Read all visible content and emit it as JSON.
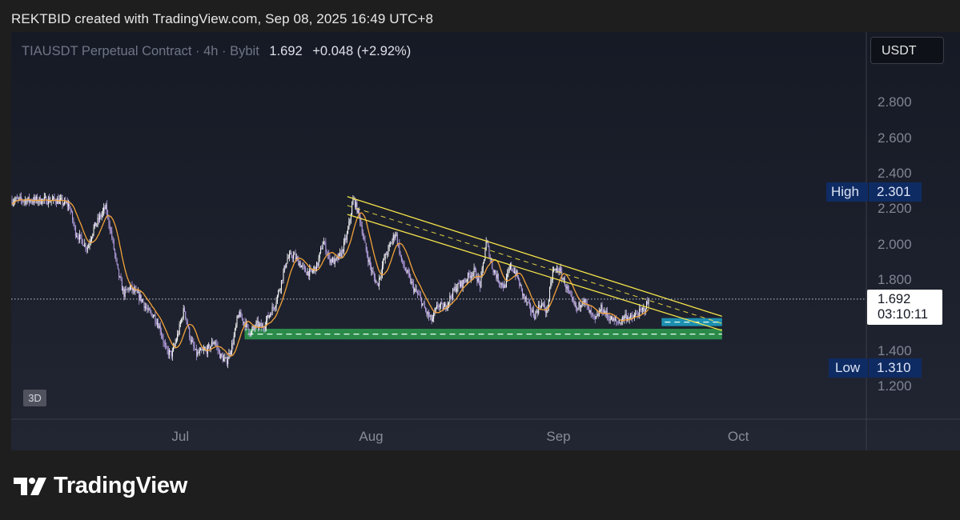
{
  "header": {
    "attribution": "REKTBID created with TradingView.com, Sep 08, 2025 16:49 UTC+8"
  },
  "legend": {
    "symbol": "TIAUSDT Perpetual Contract · 4h · Bybit",
    "last": "1.692",
    "change": "+0.048 (+2.92%)"
  },
  "unit_button": "USDT",
  "badge_3d": "3D",
  "brand": "TradingView",
  "colors": {
    "candle_up": "#ffffff",
    "candle_down": "#b9a3e6",
    "moving_average": "#f2a23a",
    "trendline": "#f5e34a",
    "support_zone": "#2e9c4e",
    "target_zone": "#1ca2c8",
    "tag_bg": "#0f2b63"
  },
  "chart_data": {
    "type": "candlestick",
    "symbol": "TIAUSDT",
    "timeframe": "4h",
    "exchange": "Bybit",
    "y_axis": {
      "ticks": [
        "1.200",
        "1.400",
        "1.800",
        "2.000",
        "2.200",
        "2.400",
        "2.600",
        "2.800"
      ],
      "range": [
        1.12,
        2.95
      ]
    },
    "x_axis": {
      "ticks": [
        "Jul",
        "Aug",
        "Sep",
        "Oct"
      ]
    },
    "high": {
      "label": "High",
      "value": "2.301"
    },
    "low": {
      "label": "Low",
      "value": "1.310"
    },
    "last_price": {
      "value": "1.692",
      "countdown": "03:10:11"
    },
    "close_path": [
      [
        "2025-06-10",
        2.25
      ],
      [
        "2025-06-12",
        2.22
      ],
      [
        "2025-06-13",
        2.07
      ],
      [
        "2025-06-15",
        1.98
      ],
      [
        "2025-06-16",
        2.09
      ],
      [
        "2025-06-18",
        2.21
      ],
      [
        "2025-06-19",
        2.05
      ],
      [
        "2025-06-20",
        1.85
      ],
      [
        "2025-06-21",
        1.72
      ],
      [
        "2025-06-22",
        1.76
      ],
      [
        "2025-06-24",
        1.69
      ],
      [
        "2025-06-25",
        1.62
      ],
      [
        "2025-06-26",
        1.6
      ],
      [
        "2025-06-27",
        1.53
      ],
      [
        "2025-06-28",
        1.4
      ],
      [
        "2025-06-29",
        1.38
      ],
      [
        "2025-06-30",
        1.5
      ],
      [
        "2025-07-01",
        1.64
      ],
      [
        "2025-07-02",
        1.47
      ],
      [
        "2025-07-03",
        1.38
      ],
      [
        "2025-07-05",
        1.41
      ],
      [
        "2025-07-06",
        1.46
      ],
      [
        "2025-07-07",
        1.37
      ],
      [
        "2025-07-08",
        1.34
      ],
      [
        "2025-07-09",
        1.44
      ],
      [
        "2025-07-10",
        1.61
      ],
      [
        "2025-07-11",
        1.56
      ],
      [
        "2025-07-12",
        1.5
      ],
      [
        "2025-07-13",
        1.55
      ],
      [
        "2025-07-14",
        1.53
      ],
      [
        "2025-07-15",
        1.6
      ],
      [
        "2025-07-16",
        1.66
      ],
      [
        "2025-07-17",
        1.78
      ],
      [
        "2025-07-18",
        1.92
      ],
      [
        "2025-07-19",
        1.94
      ],
      [
        "2025-07-20",
        1.9
      ],
      [
        "2025-07-21",
        1.85
      ],
      [
        "2025-07-22",
        1.84
      ],
      [
        "2025-07-23",
        1.88
      ],
      [
        "2025-07-24",
        2.02
      ],
      [
        "2025-07-25",
        1.92
      ],
      [
        "2025-07-26",
        1.9
      ],
      [
        "2025-07-27",
        1.95
      ],
      [
        "2025-07-28",
        2.06
      ],
      [
        "2025-07-29",
        2.26
      ],
      [
        "2025-07-30",
        2.16
      ],
      [
        "2025-07-31",
        1.98
      ],
      [
        "2025-08-01",
        1.85
      ],
      [
        "2025-08-02",
        1.77
      ],
      [
        "2025-08-03",
        1.91
      ],
      [
        "2025-08-04",
        1.99
      ],
      [
        "2025-08-05",
        2.07
      ],
      [
        "2025-08-06",
        1.9
      ],
      [
        "2025-08-07",
        1.83
      ],
      [
        "2025-08-08",
        1.75
      ],
      [
        "2025-08-09",
        1.7
      ],
      [
        "2025-08-10",
        1.62
      ],
      [
        "2025-08-11",
        1.57
      ],
      [
        "2025-08-12",
        1.66
      ],
      [
        "2025-08-13",
        1.64
      ],
      [
        "2025-08-14",
        1.7
      ],
      [
        "2025-08-15",
        1.76
      ],
      [
        "2025-08-16",
        1.78
      ],
      [
        "2025-08-17",
        1.82
      ],
      [
        "2025-08-18",
        1.85
      ],
      [
        "2025-08-19",
        1.77
      ],
      [
        "2025-08-20",
        2.02
      ],
      [
        "2025-08-21",
        1.87
      ],
      [
        "2025-08-22",
        1.8
      ],
      [
        "2025-08-23",
        1.76
      ],
      [
        "2025-08-24",
        1.88
      ],
      [
        "2025-08-25",
        1.83
      ],
      [
        "2025-08-26",
        1.72
      ],
      [
        "2025-08-27",
        1.65
      ],
      [
        "2025-08-28",
        1.6
      ],
      [
        "2025-08-29",
        1.67
      ],
      [
        "2025-08-30",
        1.62
      ],
      [
        "2025-08-31",
        1.85
      ],
      [
        "2025-09-01",
        1.86
      ],
      [
        "2025-09-02",
        1.78
      ],
      [
        "2025-09-03",
        1.69
      ],
      [
        "2025-09-04",
        1.63
      ],
      [
        "2025-09-05",
        1.7
      ],
      [
        "2025-09-06",
        1.62
      ],
      [
        "2025-09-07",
        1.57
      ],
      [
        "2025-09-08",
        1.64
      ],
      [
        "2025-09-09",
        1.6
      ],
      [
        "2025-09-10",
        1.57
      ],
      [
        "2025-09-11",
        1.56
      ],
      [
        "2025-09-12",
        1.6
      ],
      [
        "2025-09-13",
        1.58
      ],
      [
        "2025-09-14",
        1.61
      ],
      [
        "2025-09-15",
        1.63
      ],
      [
        "2025-09-16",
        1.69
      ]
    ],
    "trendline_channel": {
      "upper": [
        [
          "2025-07-28",
          2.27
        ],
        [
          "2025-09-28",
          1.595
        ]
      ],
      "lower": [
        [
          "2025-07-28",
          2.17
        ],
        [
          "2025-09-28",
          1.515
        ]
      ]
    },
    "zones": [
      {
        "name": "support",
        "low": 1.465,
        "high": 1.525,
        "from": "2025-07-11",
        "to": "2025-09-28"
      },
      {
        "name": "target",
        "low": 1.54,
        "high": 1.585,
        "from": "2025-09-18",
        "to": "2025-09-28"
      }
    ]
  }
}
